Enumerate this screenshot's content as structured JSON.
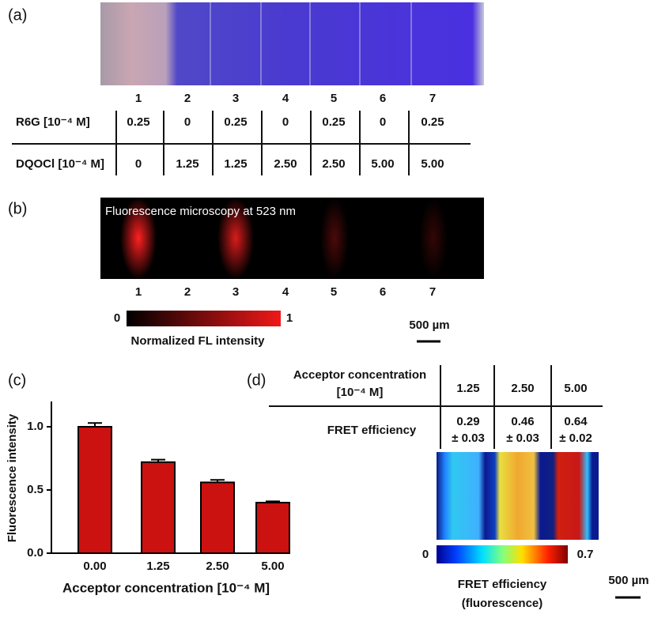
{
  "panel_labels": [
    "(a)",
    "(b)",
    "(c)",
    "(d)"
  ],
  "panel_a": {
    "lanes": [
      "1",
      "2",
      "3",
      "4",
      "5",
      "6",
      "7"
    ],
    "rows": [
      {
        "label": "R6G [10⁻⁴ M]",
        "values": [
          "0.25",
          "0",
          "0.25",
          "0",
          "0.25",
          "0",
          "0.25"
        ]
      },
      {
        "label": "DQOCl [10⁻⁴ M]",
        "values": [
          "0",
          "1.25",
          "1.25",
          "2.50",
          "2.50",
          "5.00",
          "5.00"
        ]
      }
    ]
  },
  "panel_b": {
    "caption": "Fluorescence microscopy at 523 nm",
    "lanes": [
      "1",
      "2",
      "3",
      "4",
      "5",
      "6",
      "7"
    ],
    "colorbar_min": "0",
    "colorbar_max": "1",
    "colorbar_label": "Normalized FL intensity",
    "scale_bar": "500 µm"
  },
  "chart_data": {
    "type": "bar",
    "ylabel": "Fluorescence intensity",
    "xlabel": "Acceptor concentration [10⁻⁴ M]",
    "categories": [
      "0.00",
      "1.25",
      "2.50",
      "5.00"
    ],
    "values": [
      1.0,
      0.72,
      0.56,
      0.4
    ],
    "errors": [
      0.03,
      0.02,
      0.02,
      0.01
    ],
    "color": "#cc1111",
    "ylim": [
      0,
      1.2
    ],
    "yticks": [
      {
        "value": 0,
        "label": "0.0"
      },
      {
        "value": 0.5,
        "label": "0.5"
      },
      {
        "value": 1,
        "label": "1.0"
      }
    ]
  },
  "panel_d": {
    "header": [
      "Acceptor concentration",
      "[10⁻⁴ M]"
    ],
    "columns": [
      "1.25",
      "2.50",
      "5.00"
    ],
    "row_label": "FRET efficiency",
    "values": [
      "0.29",
      "0.46",
      "0.64"
    ],
    "errors": [
      "± 0.03",
      "± 0.03",
      "± 0.02"
    ],
    "colorbar_min": "0",
    "colorbar_max": "0.7",
    "colorbar_label": [
      "FRET efficiency",
      "(fluorescence)"
    ],
    "scale_bar": "500 µm"
  }
}
